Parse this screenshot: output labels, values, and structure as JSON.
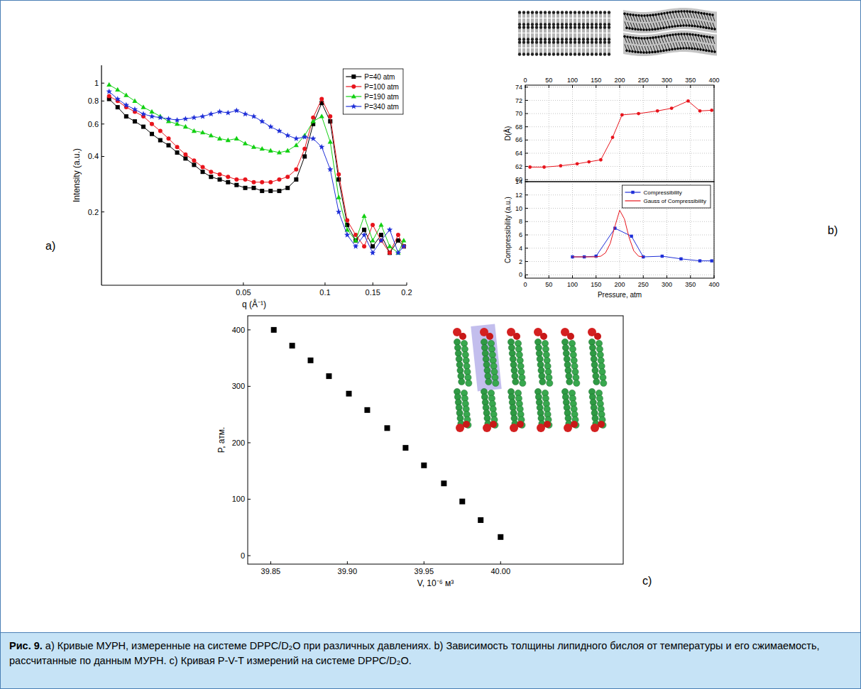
{
  "chart_data": [
    {
      "type": "line",
      "panel": "a)",
      "x_label": "q (Å⁻¹)",
      "y_label": "Intensity (a.u.)",
      "log": true,
      "grid": false,
      "legend": "upper right",
      "xlim": [
        0.015,
        0.2
      ],
      "xticks": [
        0.05,
        0.1,
        0.15,
        0.2
      ],
      "ylim": [
        0.08,
        1.25
      ],
      "yticks": [
        0.2,
        0.4,
        0.6,
        0.8,
        1
      ],
      "x": [
        0.016,
        0.0172,
        0.0185,
        0.0199,
        0.0214,
        0.023,
        0.0247,
        0.0265,
        0.0285,
        0.0306,
        0.0329,
        0.0354,
        0.038,
        0.0409,
        0.0439,
        0.0472,
        0.0508,
        0.0546,
        0.0586,
        0.063,
        0.0678,
        0.0728,
        0.0783,
        0.0841,
        0.0904,
        0.0972,
        0.1045,
        0.1123,
        0.1207,
        0.1297,
        0.1394,
        0.1498,
        0.161,
        0.1731,
        0.186,
        0.195
      ],
      "series": [
        {
          "name": "P=40 atm",
          "color": "#000000",
          "marker": "square",
          "values": [
            0.82,
            0.74,
            0.66,
            0.62,
            0.58,
            0.53,
            0.49,
            0.46,
            0.42,
            0.39,
            0.36,
            0.33,
            0.31,
            0.3,
            0.29,
            0.28,
            0.27,
            0.27,
            0.26,
            0.26,
            0.26,
            0.27,
            0.3,
            0.4,
            0.6,
            0.78,
            0.62,
            0.3,
            0.17,
            0.14,
            0.16,
            0.13,
            0.15,
            0.12,
            0.14,
            0.13
          ]
        },
        {
          "name": "P=100 atm",
          "color": "#e8141c",
          "marker": "circle",
          "values": [
            0.85,
            0.8,
            0.74,
            0.7,
            0.66,
            0.6,
            0.55,
            0.5,
            0.45,
            0.41,
            0.38,
            0.35,
            0.33,
            0.32,
            0.31,
            0.3,
            0.3,
            0.29,
            0.29,
            0.29,
            0.3,
            0.31,
            0.34,
            0.44,
            0.65,
            0.82,
            0.66,
            0.32,
            0.18,
            0.15,
            0.13,
            0.17,
            0.14,
            0.12,
            0.15,
            0.13
          ]
        },
        {
          "name": "P=190 atm",
          "color": "#12d012",
          "marker": "triangle",
          "values": [
            0.98,
            0.92,
            0.86,
            0.8,
            0.74,
            0.7,
            0.66,
            0.62,
            0.6,
            0.58,
            0.55,
            0.54,
            0.52,
            0.5,
            0.49,
            0.5,
            0.47,
            0.45,
            0.44,
            0.43,
            0.42,
            0.43,
            0.46,
            0.52,
            0.62,
            0.66,
            0.48,
            0.24,
            0.16,
            0.14,
            0.19,
            0.14,
            0.17,
            0.13,
            0.12,
            0.14
          ]
        },
        {
          "name": "P=340 atm",
          "color": "#1f2fd8",
          "marker": "star",
          "values": [
            0.9,
            0.82,
            0.76,
            0.72,
            0.68,
            0.66,
            0.65,
            0.64,
            0.63,
            0.64,
            0.65,
            0.66,
            0.68,
            0.7,
            0.69,
            0.71,
            0.68,
            0.66,
            0.62,
            0.58,
            0.55,
            0.52,
            0.5,
            0.51,
            0.5,
            0.45,
            0.34,
            0.2,
            0.15,
            0.13,
            0.15,
            0.12,
            0.14,
            0.16,
            0.12,
            0.13
          ]
        }
      ]
    },
    {
      "type": "line",
      "panel": "b)",
      "y_label": "D(Å)",
      "grid": true,
      "xlim": [
        0,
        400
      ],
      "xticks": [
        0,
        50,
        100,
        150,
        200,
        250,
        300,
        350,
        400
      ],
      "ylim": [
        59.7,
        74.3
      ],
      "yticks": [
        60,
        62,
        64,
        66,
        68,
        70,
        72,
        74
      ],
      "x": [
        10,
        40,
        75,
        110,
        135,
        160,
        185,
        205,
        240,
        280,
        310,
        345,
        370,
        395
      ],
      "series": [
        {
          "color": "#e8141c",
          "marker": "circle",
          "values": [
            61.9,
            61.9,
            62.1,
            62.4,
            62.7,
            63.0,
            66.4,
            69.8,
            70.0,
            70.4,
            70.8,
            71.9,
            70.4,
            70.5
          ]
        }
      ]
    },
    {
      "type": "line",
      "x_label": "Pressure, atm",
      "y_label": "Compressibility (a.u.)",
      "grid": true,
      "legend": "upper right",
      "xlim": [
        0,
        400
      ],
      "xticks": [
        0,
        50,
        100,
        150,
        200,
        250,
        300,
        350,
        400
      ],
      "ylim": [
        -0.5,
        14
      ],
      "yticks": [
        0,
        2,
        4,
        6,
        8,
        10,
        12,
        14
      ],
      "series": [
        {
          "name": "Compressibility",
          "color": "#1f2fd8",
          "marker": "square",
          "x": [
            100,
            125,
            150,
            190,
            225,
            250,
            290,
            330,
            370,
            395
          ],
          "values": [
            2.7,
            2.7,
            2.8,
            7.0,
            5.8,
            2.7,
            2.8,
            2.4,
            2.1,
            2.1
          ]
        },
        {
          "name": "Gauss of Compressibility",
          "color": "#e8141c",
          "x": [
            100,
            125,
            150,
            160,
            170,
            180,
            190,
            200,
            210,
            220,
            230,
            240,
            250
          ],
          "values": [
            2.7,
            2.7,
            2.7,
            2.8,
            3.3,
            4.7,
            7.3,
            9.7,
            8.4,
            5.6,
            3.6,
            2.8,
            2.7
          ]
        }
      ]
    },
    {
      "type": "scatter",
      "panel": "c)",
      "x_label": "V, 10⁻⁶ м³",
      "y_label": "P, атм.",
      "grid": false,
      "color": "#000000",
      "marker": "square",
      "xlim": [
        39.835,
        40.08
      ],
      "xticks": [
        {
          "value": 39.85,
          "label": "39.85"
        },
        {
          "value": 39.9,
          "label": "39.90"
        },
        {
          "value": 39.95,
          "label": "39.95"
        },
        {
          "value": 40,
          "label": "40.00"
        }
      ],
      "ylim": [
        -15,
        425
      ],
      "yticks": [
        0,
        100,
        200,
        300,
        400
      ],
      "x": [
        39.852,
        39.864,
        39.876,
        39.888,
        39.901,
        39.913,
        39.926,
        39.938,
        39.95,
        39.963,
        39.975,
        39.987,
        40.0
      ],
      "values": [
        400,
        372,
        346,
        318,
        287,
        258,
        226,
        191,
        160,
        128,
        96,
        63,
        33
      ]
    }
  ],
  "caption": {
    "label": "Рис. 9.",
    "text": "a) Кривые МУРН, измеренные на системе DPPC/D₂O при различных давлениях. b) Зависимость толщины липидного бислоя от температуры и его сжимаемость, рассчитанные по данным МУРН. c) Кривая P-V-T измерений на системе DPPC/D₂O."
  }
}
